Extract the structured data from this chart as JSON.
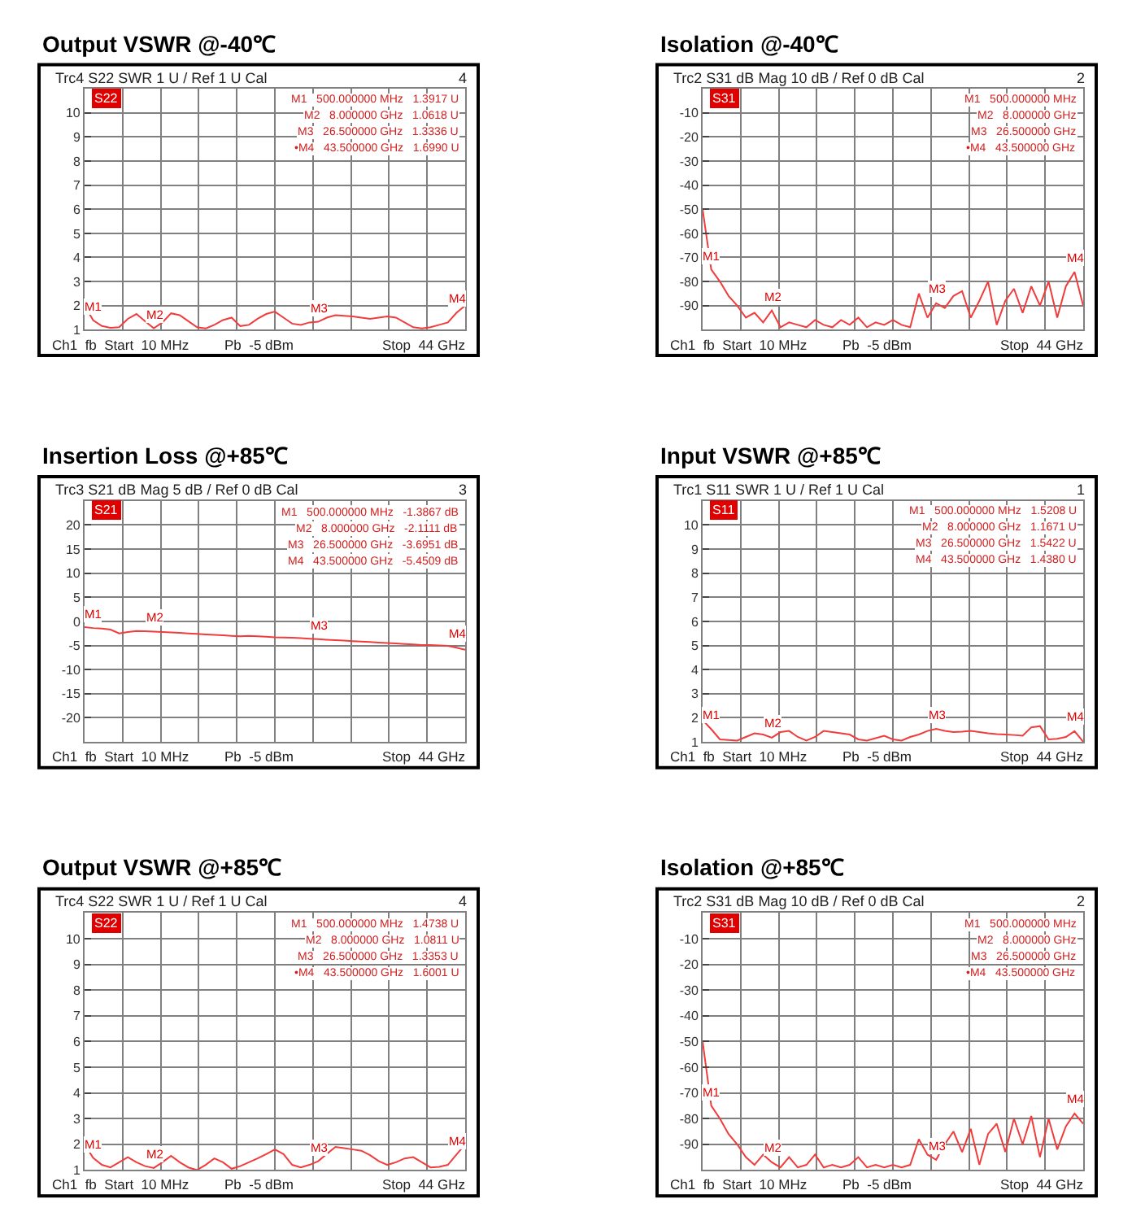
{
  "chart_data": [
    {
      "type": "line",
      "title": "Output VSWR @-40℃",
      "subtitle": "Trc4 S22 SWR 1 U / Ref 1 U Cal",
      "categories": [
        null,
        null,
        null,
        null,
        null,
        null,
        null,
        null,
        null,
        null,
        null,
        null,
        null,
        null,
        null,
        null,
        null,
        null,
        null,
        null,
        null,
        null,
        null,
        null,
        null,
        null,
        null,
        null,
        null,
        null,
        null,
        null,
        null,
        null,
        null,
        null,
        null,
        null,
        null,
        null,
        null,
        null,
        null,
        null,
        null
      ],
      "ylim": [
        1,
        11
      ],
      "yticks": [
        1,
        2,
        3,
        4,
        5,
        6,
        7,
        8,
        9,
        10
      ],
      "grid": true,
      "tick_labels": "y",
      "series": [
        {
          "color": "#f03c3c",
          "values": [
            2.0,
            1.39,
            1.15,
            1.08,
            1.1,
            1.45,
            1.65,
            1.35,
            1.06,
            1.3,
            1.68,
            1.6,
            1.35,
            1.1,
            1.05,
            1.2,
            1.4,
            1.5,
            1.15,
            1.2,
            1.45,
            1.65,
            1.75,
            1.5,
            1.25,
            1.2,
            1.3,
            1.33,
            1.5,
            1.6,
            1.58,
            1.55,
            1.5,
            1.45,
            1.5,
            1.55,
            1.5,
            1.3,
            1.1,
            1.05,
            1.1,
            1.2,
            1.3,
            1.7,
            2.0
          ]
        }
      ],
      "annotations": [
        "S22",
        "4",
        "M1   500.000000 MHz   1.3917 U",
        "M2   8.000000 GHz   1.0618 U",
        "M3   26.500000 GHz   1.3336 U",
        "•M4   43.500000 GHz   1.6990 U",
        "Ch1  fb  Start  10 MHz",
        "Pb  -5 dBm",
        "Stop  44 GHz",
        {
          "text": "M1",
          "y": 1.3917
        },
        {
          "text": "M2",
          "y": 1.0618
        },
        {
          "text": "M3",
          "y": 1.3336
        },
        {
          "text": "M4",
          "y": 1.699
        }
      ]
    },
    {
      "type": "line",
      "title": "Isolation @-40℃",
      "subtitle": "Trc2 S31 dB Mag 10 dB / Ref 0 dB Cal",
      "categories": [
        null,
        null,
        null,
        null,
        null,
        null,
        null,
        null,
        null,
        null,
        null,
        null,
        null,
        null,
        null,
        null,
        null,
        null,
        null,
        null,
        null,
        null,
        null,
        null,
        null,
        null,
        null,
        null,
        null,
        null,
        null,
        null,
        null,
        null,
        null,
        null,
        null,
        null,
        null,
        null,
        null,
        null,
        null,
        null,
        null
      ],
      "ylim": [
        -100,
        0
      ],
      "yticks": [
        -90,
        -80,
        -70,
        -60,
        -50,
        -40,
        -30,
        -20,
        -10
      ],
      "grid": true,
      "tick_labels": "y",
      "series": [
        {
          "color": "#f03c3c",
          "values": [
            -50,
            -75,
            -80,
            -86,
            -90,
            -95,
            -93,
            -97,
            -92,
            -99,
            -97,
            -98,
            -99,
            -96,
            -98,
            -99,
            -96,
            -98,
            -95,
            -99,
            -97,
            -98,
            -96,
            -98,
            -99,
            -85,
            -95,
            -89,
            -91,
            -86,
            -84,
            -95,
            -88,
            -80,
            -98,
            -88,
            -83,
            -93,
            -82,
            -90,
            -80,
            -95,
            -82,
            -76,
            -90
          ]
        }
      ],
      "annotations": [
        "S31",
        "2",
        "M1   500.000000 MHz",
        "M2   8.000000 GHz",
        "M3   26.500000 GHz",
        "•M4   43.500000 GHz",
        "Ch1  fb  Start  10 MHz",
        "Pb  -5 dBm",
        "Stop  44 GHz",
        {
          "text": "M1",
          "y": -75
        },
        {
          "text": "M2",
          "y": -92
        },
        {
          "text": "M3",
          "y": -89
        },
        {
          "text": "M4",
          "y": -76
        }
      ]
    },
    {
      "type": "line",
      "title": "Insertion Loss @+85℃",
      "subtitle": "Trc3 S21 dB Mag 5 dB / Ref 0 dB Cal",
      "categories": [
        null,
        null,
        null,
        null,
        null,
        null,
        null,
        null,
        null,
        null,
        null,
        null,
        null,
        null,
        null,
        null,
        null,
        null,
        null,
        null,
        null,
        null,
        null,
        null,
        null,
        null,
        null,
        null,
        null,
        null,
        null,
        null,
        null,
        null,
        null,
        null,
        null,
        null,
        null,
        null,
        null,
        null,
        null,
        null,
        null
      ],
      "ylim": [
        -25,
        25
      ],
      "yticks": [
        -20,
        -15,
        -10,
        -5,
        0,
        5,
        10,
        15,
        20
      ],
      "grid": true,
      "tick_labels": "y",
      "series": [
        {
          "color": "#f03c3c",
          "values": [
            -1.2,
            -1.39,
            -1.5,
            -1.7,
            -2.5,
            -2.2,
            -2.0,
            -2.05,
            -2.11,
            -2.2,
            -2.3,
            -2.4,
            -2.5,
            -2.6,
            -2.7,
            -2.8,
            -2.9,
            -3.0,
            -3.1,
            -3.0,
            -3.1,
            -3.2,
            -3.3,
            -3.35,
            -3.4,
            -3.5,
            -3.6,
            -3.7,
            -3.8,
            -3.9,
            -4.0,
            -4.1,
            -4.2,
            -4.3,
            -4.4,
            -4.5,
            -4.6,
            -4.7,
            -4.8,
            -4.9,
            -4.9,
            -5.0,
            -5.1,
            -5.45,
            -5.9
          ]
        }
      ],
      "annotations": [
        "S21",
        "3",
        "M1   500.000000 MHz   -1.3867 dB",
        "M2   8.000000 GHz   -2.1111 dB",
        "M3   26.500000 GHz   -3.6951 dB",
        "M4   43.500000 GHz   -5.4509 dB",
        "Ch1  fb  Start  10 MHz",
        "Pb  -5 dBm",
        "Stop  44 GHz",
        {
          "text": "M1",
          "y": -1.3867
        },
        {
          "text": "M2",
          "y": -2.1111
        },
        {
          "text": "M3",
          "y": -3.6951
        },
        {
          "text": "M4",
          "y": -5.4509
        }
      ]
    },
    {
      "type": "line",
      "title": "Input VSWR @+85℃",
      "subtitle": "Trc1 S11 SWR 1 U / Ref 1 U Cal",
      "categories": [
        null,
        null,
        null,
        null,
        null,
        null,
        null,
        null,
        null,
        null,
        null,
        null,
        null,
        null,
        null,
        null,
        null,
        null,
        null,
        null,
        null,
        null,
        null,
        null,
        null,
        null,
        null,
        null,
        null,
        null,
        null,
        null,
        null,
        null,
        null,
        null,
        null,
        null,
        null,
        null,
        null,
        null,
        null,
        null,
        null
      ],
      "ylim": [
        1,
        11
      ],
      "yticks": [
        1,
        2,
        3,
        4,
        5,
        6,
        7,
        8,
        9,
        10
      ],
      "grid": true,
      "tick_labels": "y",
      "series": [
        {
          "color": "#f03c3c",
          "values": [
            1.9,
            1.52,
            1.1,
            1.07,
            1.05,
            1.2,
            1.35,
            1.3,
            1.17,
            1.4,
            1.45,
            1.2,
            1.05,
            1.2,
            1.45,
            1.4,
            1.35,
            1.3,
            1.1,
            1.05,
            1.15,
            1.25,
            1.1,
            1.05,
            1.2,
            1.3,
            1.45,
            1.54,
            1.45,
            1.4,
            1.42,
            1.45,
            1.4,
            1.35,
            1.32,
            1.3,
            1.28,
            1.25,
            1.6,
            1.65,
            1.1,
            1.12,
            1.2,
            1.44,
            1.0
          ]
        }
      ],
      "annotations": [
        "S11",
        "1",
        "M1   500.000000 MHz   1.5208 U",
        "M2   8.000000 GHz   1.1671 U",
        "M3   26.500000 GHz   1.5422 U",
        "M4   43.500000 GHz   1.4380 U",
        "Ch1  fb  Start  10 MHz",
        "Pb  -5 dBm",
        "Stop  44 GHz",
        {
          "text": "M1",
          "y": 1.5208
        },
        {
          "text": "M2",
          "y": 1.1671
        },
        {
          "text": "M3",
          "y": 1.5422
        },
        {
          "text": "M4",
          "y": 1.438
        }
      ]
    },
    {
      "type": "line",
      "title": "Output VSWR @+85℃",
      "subtitle": "Trc4 S22 SWR 1 U / Ref 1 U Cal",
      "categories": [
        null,
        null,
        null,
        null,
        null,
        null,
        null,
        null,
        null,
        null,
        null,
        null,
        null,
        null,
        null,
        null,
        null,
        null,
        null,
        null,
        null,
        null,
        null,
        null,
        null,
        null,
        null,
        null,
        null,
        null,
        null,
        null,
        null,
        null,
        null,
        null,
        null,
        null,
        null,
        null,
        null,
        null,
        null,
        null,
        null
      ],
      "ylim": [
        1,
        11
      ],
      "yticks": [
        1,
        2,
        3,
        4,
        5,
        6,
        7,
        8,
        9,
        10
      ],
      "grid": true,
      "tick_labels": "y",
      "series": [
        {
          "color": "#f03c3c",
          "values": [
            2.0,
            1.47,
            1.2,
            1.1,
            1.3,
            1.5,
            1.3,
            1.15,
            1.08,
            1.3,
            1.55,
            1.3,
            1.1,
            1.0,
            1.2,
            1.45,
            1.3,
            1.05,
            1.15,
            1.3,
            1.45,
            1.62,
            1.8,
            1.62,
            1.2,
            1.1,
            1.2,
            1.34,
            1.62,
            1.9,
            1.85,
            1.8,
            1.75,
            1.58,
            1.35,
            1.2,
            1.3,
            1.45,
            1.5,
            1.3,
            1.1,
            1.12,
            1.2,
            1.6,
            2.0
          ]
        }
      ],
      "annotations": [
        "S22",
        "4",
        "M1   500.000000 MHz   1.4738 U",
        "M2   8.000000 GHz   1.0811 U",
        "M3   26.500000 GHz   1.3353 U",
        "•M4   43.500000 GHz   1.6001 U",
        "Ch1  fb  Start  10 MHz",
        "Pb  -5 dBm",
        "Stop  44 GHz",
        {
          "text": "M1",
          "y": 1.4738
        },
        {
          "text": "M2",
          "y": 1.0811
        },
        {
          "text": "M3",
          "y": 1.3353
        },
        {
          "text": "M4",
          "y": 1.6001
        }
      ]
    },
    {
      "type": "line",
      "title": "Isolation @+85℃",
      "subtitle": "Trc2 S31 dB Mag 10 dB / Ref 0 dB Cal",
      "categories": [
        null,
        null,
        null,
        null,
        null,
        null,
        null,
        null,
        null,
        null,
        null,
        null,
        null,
        null,
        null,
        null,
        null,
        null,
        null,
        null,
        null,
        null,
        null,
        null,
        null,
        null,
        null,
        null,
        null,
        null,
        null,
        null,
        null,
        null,
        null,
        null,
        null,
        null,
        null,
        null,
        null,
        null,
        null,
        null,
        null
      ],
      "ylim": [
        -100,
        0
      ],
      "yticks": [
        -90,
        -80,
        -70,
        -60,
        -50,
        -40,
        -30,
        -20,
        -10
      ],
      "grid": true,
      "tick_labels": "y",
      "series": [
        {
          "color": "#f03c3c",
          "values": [
            -50,
            -75,
            -80,
            -86,
            -90,
            -95,
            -98,
            -94,
            -97,
            -99,
            -95,
            -99,
            -98,
            -94,
            -99,
            -98,
            -99,
            -98,
            -95,
            -99,
            -98,
            -99,
            -98,
            -99,
            -98,
            -88,
            -94,
            -96,
            -90,
            -85,
            -93,
            -84,
            -98,
            -86,
            -82,
            -93,
            -80,
            -90,
            -79,
            -95,
            -80,
            -92,
            -83,
            -78,
            -82
          ]
        }
      ],
      "annotations": [
        "S31",
        "2",
        "M1   500.000000 MHz",
        "M2   8.000000 GHz",
        "M3   26.500000 GHz",
        "•M4   43.500000 GHz",
        "Ch1  fb  Start  10 MHz",
        "Pb  -5 dBm",
        "Stop  44 GHz",
        {
          "text": "M1",
          "y": -75
        },
        {
          "text": "M2",
          "y": -97
        },
        {
          "text": "M3",
          "y": -96
        },
        {
          "text": "M4",
          "y": -78
        }
      ]
    }
  ]
}
